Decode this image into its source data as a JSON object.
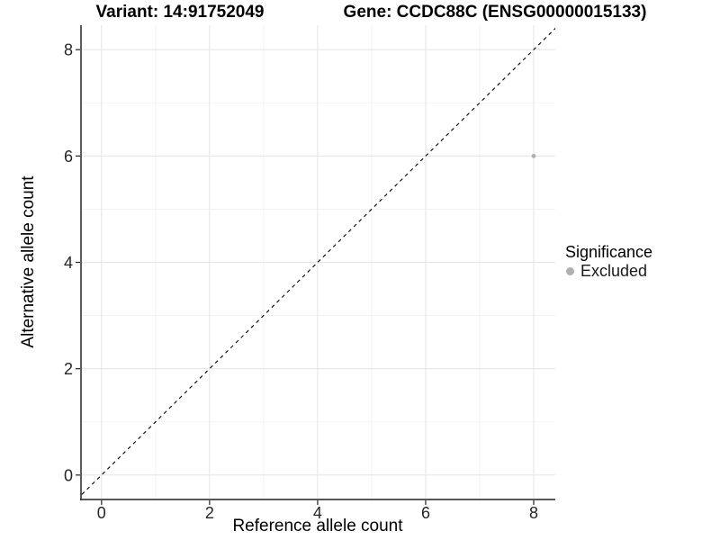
{
  "chart_data": {
    "type": "scatter",
    "title_left": "Variant: 14:91752049",
    "title_right": "Gene: CCDC88C (ENSG00000015133)",
    "xlabel": "Reference allele count",
    "ylabel": "Alternative allele count",
    "xlim": [
      -0.38,
      8.4
    ],
    "ylim": [
      -0.46,
      8.46
    ],
    "xticks": [
      0,
      2,
      4,
      6,
      8
    ],
    "yticks": [
      0,
      2,
      4,
      6,
      8
    ],
    "minor_xticks": [
      1,
      3,
      5,
      7
    ],
    "minor_yticks": [
      1,
      3,
      5,
      7
    ],
    "grid": "major+minor",
    "points": [
      {
        "x": 8,
        "y": 6,
        "series": "Excluded"
      }
    ],
    "identity_line": {
      "style": "dashed",
      "from": [
        -0.46,
        -0.46
      ],
      "to": [
        8.46,
        8.46
      ],
      "color": "#000000"
    },
    "legend": {
      "position": "right",
      "title": "Significance",
      "items": [
        {
          "label": "Excluded",
          "color": "#b0b0b0"
        }
      ]
    },
    "colors": {
      "point": "#b0b0b0",
      "grid_major": "#e6e6e6",
      "grid_minor": "#f1f1f1",
      "axis_line": "#404040",
      "tick_mark": "#333333"
    }
  }
}
